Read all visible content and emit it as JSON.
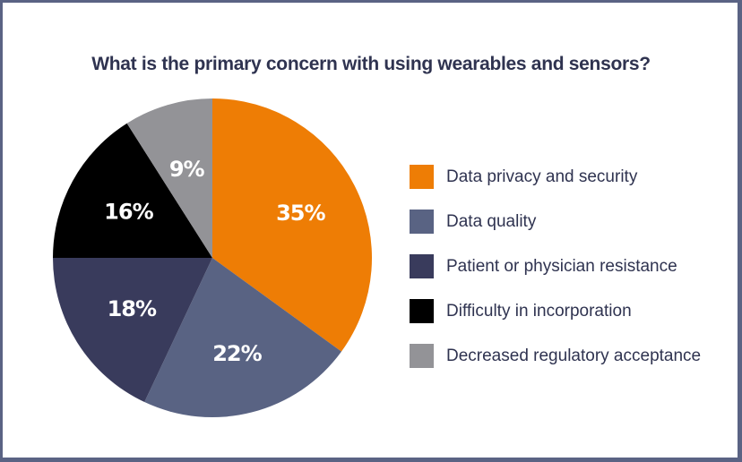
{
  "chart_data": {
    "type": "pie",
    "title": "What is the primary concern with using wearables and sensors?",
    "categories": [
      "Data privacy and security",
      "Data quality",
      "Patient or physician resistance",
      "Difficulty in incorporation",
      "Decreased regulatory acceptance"
    ],
    "values": [
      35,
      22,
      18,
      16,
      9
    ],
    "labels": [
      "35%",
      "22%",
      "18%",
      "16%",
      "9%"
    ],
    "colors": [
      "#ee7d05",
      "#596383",
      "#393b5c",
      "#000000",
      "#939397"
    ],
    "legend_position": "right"
  },
  "legend": {
    "items": [
      {
        "label": "Data privacy and security",
        "color": "#ee7d05"
      },
      {
        "label": "Data quality",
        "color": "#596383"
      },
      {
        "label": "Patient or physician resistance",
        "color": "#393b5c"
      },
      {
        "label": "Difficulty in incorporation",
        "color": "#000000"
      },
      {
        "label": "Decreased regulatory acceptance",
        "color": "#939397"
      }
    ]
  }
}
